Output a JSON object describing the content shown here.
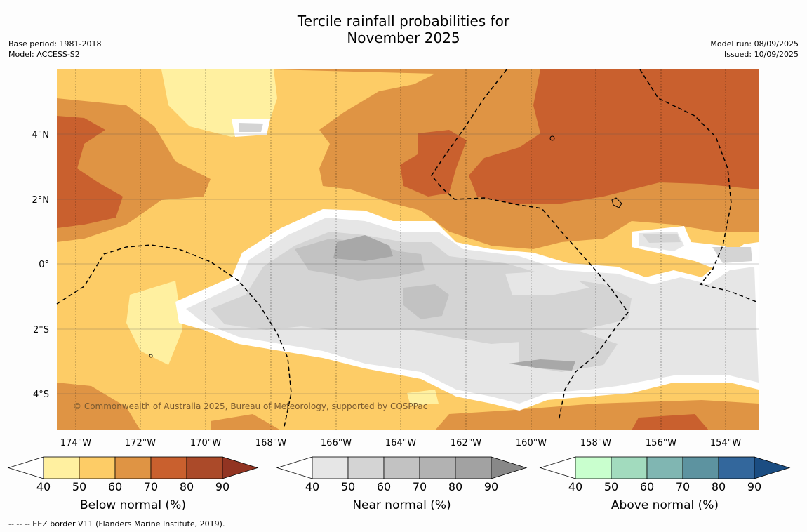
{
  "title_line1": "Tercile rainfall probabilities for",
  "title_line2": "November 2025",
  "meta_left": {
    "base_period": "Base period: 1981-2018",
    "model": "Model: ACCESS-S2"
  },
  "meta_right": {
    "model_run": "Model run: 08/09/2025",
    "issued": "Issued: 10/09/2025"
  },
  "map": {
    "lon_labels": [
      "174°W",
      "172°W",
      "170°W",
      "168°W",
      "166°W",
      "164°W",
      "162°W",
      "160°W",
      "158°W",
      "156°W",
      "154°W"
    ],
    "lat_labels": [
      "4°N",
      "2°N",
      "0°",
      "2°S",
      "4°S"
    ],
    "copyright": "© Commonwealth of Australia 2025, Bureau of Meteorology, supported by COSPPac"
  },
  "colorbars": [
    {
      "label": "Below normal (%)",
      "ticks": [
        "40",
        "50",
        "60",
        "70",
        "80",
        "90"
      ],
      "colors": [
        "#fff0a0",
        "#fdcc66",
        "#df9444",
        "#c9602e",
        "#ab4a29",
        "#923422"
      ]
    },
    {
      "label": "Near normal (%)",
      "ticks": [
        "40",
        "50",
        "60",
        "70",
        "80",
        "90"
      ],
      "colors": [
        "#e6e6e6",
        "#d4d4d4",
        "#c2c2c2",
        "#b2b2b2",
        "#a2a2a2",
        "#888888"
      ]
    },
    {
      "label": "Above normal (%)",
      "ticks": [
        "40",
        "50",
        "60",
        "70",
        "80",
        "90"
      ],
      "colors": [
        "#c9ffce",
        "#a2dbbe",
        "#80b6b2",
        "#5d93a0",
        "#33679c",
        "#1b4d82"
      ]
    }
  ],
  "footer": "--  --  -- EEZ border V11 (Flanders Marine Institute, 2019)."
}
